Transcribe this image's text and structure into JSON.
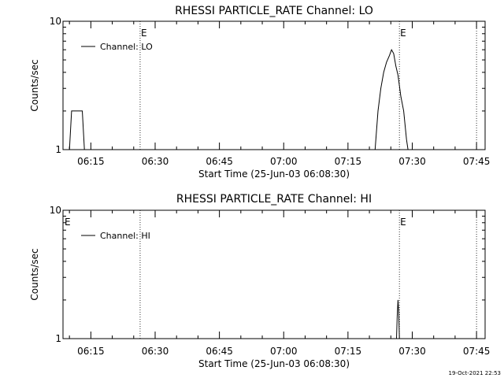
{
  "footer_timestamp": "19-Oct-2021 22:53",
  "chart_data": [
    {
      "type": "line",
      "title": "RHESSI PARTICLE_RATE Channel: LO",
      "xlabel": "Start Time (25-Jun-03 06:08:30)",
      "ylabel": "Counts/sec",
      "yscale": "log",
      "ylim": [
        1,
        10
      ],
      "xlim": [
        "06:08:30",
        "07:47:00"
      ],
      "x_ticks": [
        "06:15",
        "06:30",
        "06:45",
        "07:00",
        "07:15",
        "07:30",
        "07:45"
      ],
      "y_ticks": [
        "1",
        "10"
      ],
      "legend": {
        "position": "top-left",
        "entries": [
          "Channel: LO"
        ]
      },
      "markers": [
        {
          "time": "06:26:30",
          "label": "E"
        },
        {
          "time": "07:27:00",
          "label": "E"
        },
        {
          "time": "07:45:00",
          "label": ""
        }
      ],
      "series": [
        {
          "name": "Channel: LO",
          "x": [
            "06:10:00",
            "06:10:30",
            "06:13:00",
            "06:13:30",
            "07:21:20",
            "07:22:00",
            "07:22:40",
            "07:23:20",
            "07:24:00",
            "07:24:40",
            "07:25:10",
            "07:25:40",
            "07:26:10",
            "07:26:40",
            "07:27:20",
            "07:28:00",
            "07:28:40",
            "07:29:00"
          ],
          "y": [
            1.0,
            2.0,
            2.0,
            1.0,
            1.0,
            2.0,
            3.0,
            4.0,
            4.8,
            5.4,
            6.0,
            5.6,
            4.5,
            3.8,
            2.6,
            2.0,
            1.2,
            1.0
          ]
        }
      ]
    },
    {
      "type": "line",
      "title": "RHESSI PARTICLE_RATE Channel: HI",
      "xlabel": "Start Time (25-Jun-03 06:08:30)",
      "ylabel": "Counts/sec",
      "yscale": "log",
      "ylim": [
        1,
        10
      ],
      "xlim": [
        "06:08:30",
        "07:47:00"
      ],
      "x_ticks": [
        "06:15",
        "06:30",
        "06:45",
        "07:00",
        "07:15",
        "07:30",
        "07:45"
      ],
      "y_ticks": [
        "1",
        "10"
      ],
      "legend": {
        "position": "top-left",
        "entries": [
          "Channel: HI"
        ]
      },
      "markers": [
        {
          "time": "06:08:30",
          "label": "E"
        },
        {
          "time": "06:26:30",
          "label": ""
        },
        {
          "time": "07:27:00",
          "label": "E"
        },
        {
          "time": "07:45:00",
          "label": ""
        }
      ],
      "series": [
        {
          "name": "Channel: HI",
          "x": [
            "07:26:20",
            "07:26:30",
            "07:26:40",
            "07:26:50",
            "07:27:00"
          ],
          "y": [
            1.0,
            1.5,
            2.0,
            1.6,
            1.0
          ]
        }
      ]
    }
  ]
}
